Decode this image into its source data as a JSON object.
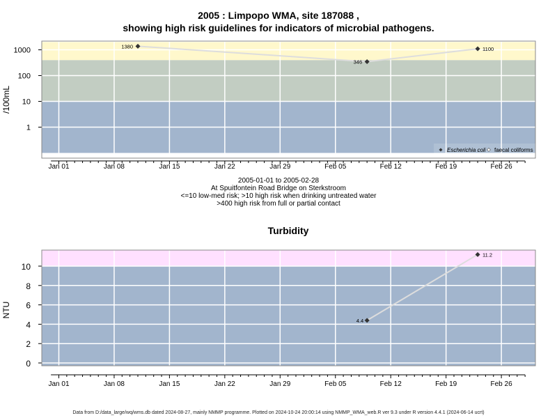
{
  "title_line1": "2005 : Limpopo WMA, site 187088 ,",
  "title_line2": "showing high risk guidelines for indicators of microbial pathogens.",
  "info": {
    "date_range": "2005-01-01 to 2005-02-28",
    "location": "At Spuitfontein Road Bridge on Sterkstroom",
    "guideline_1": "<=10 low-med risk; >10 high risk when drinking untreated water",
    "guideline_2": ">400 high risk from full or partial contact"
  },
  "footer": "Data from D:/data_large/wq/wms.db dated 2024-08-27, mainly NMMP programme. Plotted on 2024-10-24 20:00:14 using NMMP_WMA_web.R ver 9.3 under R version 4.4.1 (2024-06-14 ucrt)",
  "colors": {
    "band_low": "#a2b5cd",
    "band_mid": "#c2cdc2",
    "band_high_micro": "#fff8cc",
    "band_high_turb": "#ffe0ff",
    "grid": "#ffffff",
    "line": "#dddddd",
    "point": "#333333"
  },
  "chart_data": [
    {
      "type": "line",
      "title": "",
      "ylabel": "/100mL",
      "yscale": "log",
      "x_ticks": [
        "Jan 01",
        "Jan 08",
        "Jan 15",
        "Jan 22",
        "Jan 29",
        "Feb 05",
        "Feb 12",
        "Feb 19",
        "Feb 26"
      ],
      "y_ticks": [
        "1",
        "10",
        "100",
        "1000"
      ],
      "bands": [
        {
          "from": 0.1,
          "to": 10,
          "risk": "low-med"
        },
        {
          "from": 10,
          "to": 400,
          "risk": "high (untreated water)"
        },
        {
          "from": 400,
          "to": 2000,
          "risk": "high (contact)"
        }
      ],
      "series": [
        {
          "name": "Escherichia coli",
          "x": [
            "2005-01-11",
            "2005-02-09",
            "2005-02-23"
          ],
          "y": [
            1380,
            346,
            1100
          ],
          "labels": [
            "1380",
            "346",
            "1100"
          ]
        },
        {
          "name": "faecal coliforms",
          "x": [],
          "y": [],
          "labels": []
        }
      ],
      "legend": "bottom-right"
    },
    {
      "type": "line",
      "title": "Turbidity",
      "ylabel": "NTU",
      "x_ticks": [
        "Jan 01",
        "Jan 08",
        "Jan 15",
        "Jan 22",
        "Jan 29",
        "Feb 05",
        "Feb 12",
        "Feb 19",
        "Feb 26"
      ],
      "y_ticks": [
        "0",
        "2",
        "4",
        "6",
        "8",
        "10"
      ],
      "bands": [
        {
          "from": 0,
          "to": 10,
          "risk": "low"
        },
        {
          "from": 10,
          "to": 12,
          "risk": "high"
        }
      ],
      "series": [
        {
          "name": "Turbidity",
          "x": [
            "2005-02-09",
            "2005-02-23"
          ],
          "y": [
            4.4,
            11.2
          ],
          "labels": [
            "4.4",
            "11.2"
          ]
        }
      ]
    }
  ]
}
